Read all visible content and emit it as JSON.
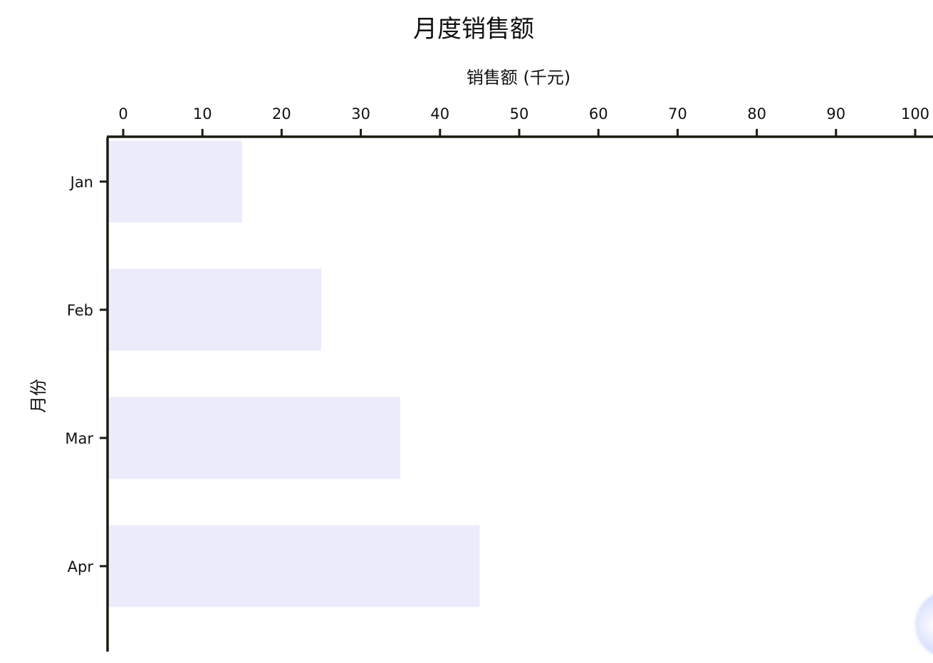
{
  "chart_data": {
    "type": "bar",
    "orientation": "horizontal",
    "title": "月度销售额",
    "xlabel": "销售额 (千元)",
    "ylabel": "月份",
    "categories": [
      "Jan",
      "Feb",
      "Mar",
      "Apr"
    ],
    "values": [
      15,
      25,
      35,
      45
    ],
    "xlim": [
      0,
      100
    ],
    "xticks": [
      0,
      10,
      20,
      30,
      40,
      50,
      60,
      70,
      80,
      90,
      100
    ],
    "x_axis_position": "top",
    "grid": false,
    "bar_color": "#ebebfb",
    "axis_color": "#1a1a0f"
  }
}
